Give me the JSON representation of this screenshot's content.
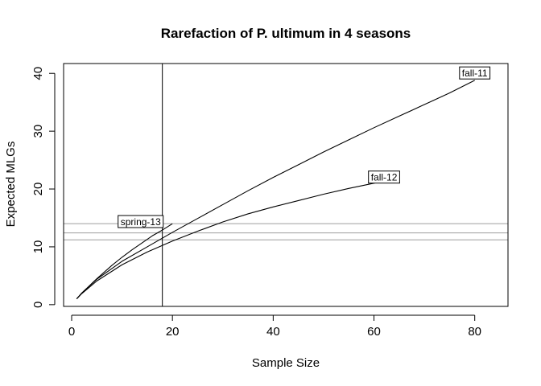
{
  "chart_data": {
    "type": "line",
    "title": "Rarefaction of P. ultimum in 4 seasons",
    "xlabel": "Sample Size",
    "ylabel": "Expected MLGs",
    "xlim": [
      -1.6,
      86.6
    ],
    "ylim": [
      -0.3,
      41.7
    ],
    "x_ticks": [
      0,
      20,
      40,
      60,
      80
    ],
    "y_ticks": [
      0,
      10,
      20,
      30,
      40
    ],
    "grid": false,
    "series": [
      {
        "name": "fall-11",
        "x": [
          1,
          2,
          5,
          10,
          15,
          20,
          25,
          30,
          35,
          40,
          45,
          50,
          55,
          60,
          65,
          70,
          75,
          80
        ],
        "y": [
          1,
          2.0,
          4.4,
          7.5,
          10.0,
          12.5,
          14.9,
          17.3,
          19.7,
          22.0,
          24.2,
          26.4,
          28.5,
          30.6,
          32.6,
          34.6,
          36.6,
          38.8
        ]
      },
      {
        "name": "fall-12",
        "x": [
          1,
          2,
          5,
          10,
          15,
          20,
          25,
          30,
          35,
          40,
          45,
          50,
          55,
          60,
          62
        ],
        "y": [
          1,
          1.9,
          4.1,
          6.9,
          9.1,
          11.0,
          12.7,
          14.3,
          15.7,
          16.9,
          18.0,
          19.1,
          20.1,
          21.0,
          21.4
        ]
      },
      {
        "name": "spring-13",
        "x": [
          1,
          2,
          5,
          8,
          10,
          12,
          14,
          16,
          18,
          20
        ],
        "y": [
          1,
          2.0,
          4.5,
          6.8,
          8.2,
          9.5,
          10.7,
          11.9,
          12.9,
          14.0
        ]
      }
    ],
    "vertical_line": {
      "x": 18
    },
    "horizontal_lines": [
      11.2,
      12.4,
      14.0
    ],
    "labels": [
      {
        "text": "fall-11",
        "x": 80,
        "y": 40
      },
      {
        "text": "fall-12",
        "x": 62,
        "y": 22
      },
      {
        "text": "spring-13",
        "x": 13.7,
        "y": 14.3
      }
    ],
    "colors": {
      "line": "#000000",
      "hline": "#9e9e9e"
    }
  }
}
